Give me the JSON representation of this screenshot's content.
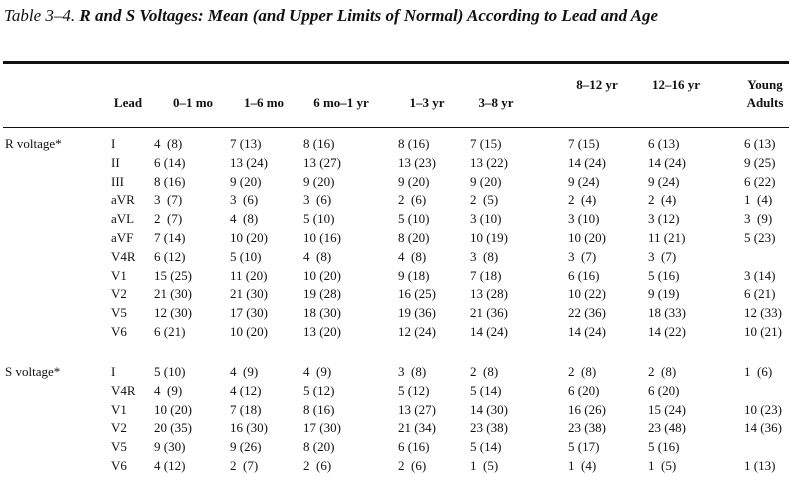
{
  "title": {
    "label": "Table 3–4.",
    "text": "R and S Voltages: Mean (and Upper Limits of Normal) According to Lead and Age"
  },
  "headers": [
    "Lead",
    "0–1 mo",
    "1–6 mo",
    "6 mo–1 yr",
    "1–3 yr",
    "3–8 yr",
    "8–12 yr",
    "12–16 yr",
    "Young Adults"
  ],
  "groups": [
    {
      "label": "R voltage*",
      "rows": [
        {
          "lead": "I",
          "values": [
            "4  (8)",
            "7 (13)",
            "8 (16)",
            "8 (16)",
            "7 (15)",
            "7 (15)",
            "6 (13)",
            "6 (13)"
          ]
        },
        {
          "lead": "II",
          "values": [
            "6 (14)",
            "13 (24)",
            "13 (27)",
            "13 (23)",
            "13 (22)",
            "14 (24)",
            "14 (24)",
            "9 (25)"
          ]
        },
        {
          "lead": "III",
          "values": [
            "8 (16)",
            "9 (20)",
            "9 (20)",
            "9 (20)",
            "9 (20)",
            "9 (24)",
            "9 (24)",
            "6 (22)"
          ]
        },
        {
          "lead": "aVR",
          "values": [
            "3  (7)",
            "3  (6)",
            "3  (6)",
            "2  (6)",
            "2  (5)",
            "2  (4)",
            "2  (4)",
            "1  (4)"
          ]
        },
        {
          "lead": "aVL",
          "values": [
            "2  (7)",
            "4  (8)",
            "5 (10)",
            "5 (10)",
            "3 (10)",
            "3 (10)",
            "3 (12)",
            "3  (9)"
          ]
        },
        {
          "lead": "aVF",
          "values": [
            "7 (14)",
            "10 (20)",
            "10 (16)",
            "8 (20)",
            "10 (19)",
            "10 (20)",
            "11 (21)",
            "5 (23)"
          ]
        },
        {
          "lead": "V4R",
          "values": [
            "6 (12)",
            "5 (10)",
            "4  (8)",
            "4  (8)",
            "3  (8)",
            "3  (7)",
            "3  (7)",
            ""
          ]
        },
        {
          "lead": "V1",
          "values": [
            "15 (25)",
            "11 (20)",
            "10 (20)",
            "9 (18)",
            "7 (18)",
            "6 (16)",
            "5 (16)",
            "3 (14)"
          ]
        },
        {
          "lead": "V2",
          "values": [
            "21 (30)",
            "21 (30)",
            "19 (28)",
            "16 (25)",
            "13 (28)",
            "10 (22)",
            "9 (19)",
            "6 (21)"
          ]
        },
        {
          "lead": "V5",
          "values": [
            "12 (30)",
            "17 (30)",
            "18 (30)",
            "19 (36)",
            "21 (36)",
            "22 (36)",
            "18 (33)",
            "12 (33)"
          ]
        },
        {
          "lead": "V6",
          "values": [
            "6 (21)",
            "10 (20)",
            "13 (20)",
            "12 (24)",
            "14 (24)",
            "14 (24)",
            "14 (22)",
            "10 (21)"
          ]
        }
      ]
    },
    {
      "label": "S voltage*",
      "rows": [
        {
          "lead": "I",
          "values": [
            "5 (10)",
            "4  (9)",
            "4  (9)",
            "3  (8)",
            "2  (8)",
            "2  (8)",
            "2  (8)",
            "1  (6)"
          ]
        },
        {
          "lead": "V4R",
          "values": [
            "4  (9)",
            "4 (12)",
            "5 (12)",
            "5 (12)",
            "5 (14)",
            "6 (20)",
            "6 (20)",
            ""
          ]
        },
        {
          "lead": "V1",
          "values": [
            "10 (20)",
            "7 (18)",
            "8 (16)",
            "13 (27)",
            "14 (30)",
            "16 (26)",
            "15 (24)",
            "10 (23)"
          ]
        },
        {
          "lead": "V2",
          "values": [
            "20 (35)",
            "16 (30)",
            "17 (30)",
            "21 (34)",
            "23 (38)",
            "23 (38)",
            "23 (48)",
            "14 (36)"
          ]
        },
        {
          "lead": "V5",
          "values": [
            "9 (30)",
            "9 (26)",
            "8 (20)",
            "6 (16)",
            "5 (14)",
            "5 (17)",
            "5 (16)",
            ""
          ]
        },
        {
          "lead": "V6",
          "values": [
            "4 (12)",
            "2  (7)",
            "2  (6)",
            "2  (6)",
            "1  (5)",
            "1  (4)",
            "1  (5)",
            "1 (13)"
          ]
        }
      ]
    }
  ]
}
